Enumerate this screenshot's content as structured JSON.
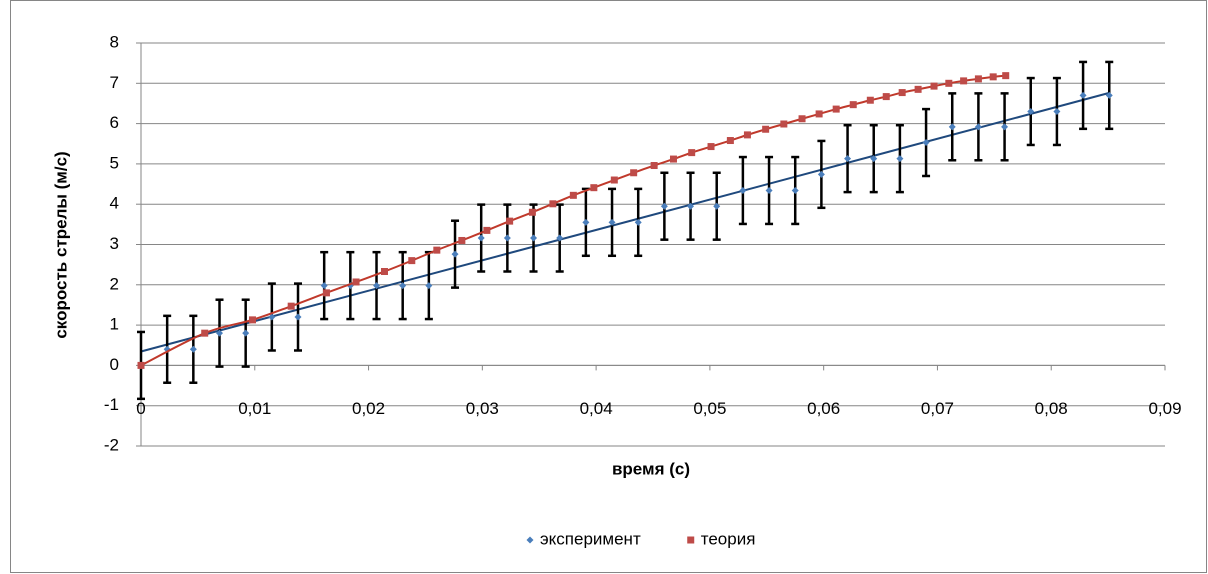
{
  "chart_data": {
    "type": "scatter",
    "x_label": "время (с)",
    "y_label": "скорость стрелы (м/с)",
    "xlim": [
      0,
      0.09
    ],
    "xticks": [
      0,
      {
        "value": 0.01,
        "label": "0,01"
      },
      {
        "value": 0.02,
        "label": "0,02"
      },
      {
        "value": 0.03,
        "label": "0,03"
      },
      {
        "value": 0.04,
        "label": "0,04"
      },
      {
        "value": 0.05,
        "label": "0,05"
      },
      {
        "value": 0.06,
        "label": "0,06"
      },
      {
        "value": 0.07,
        "label": "0,07"
      },
      {
        "value": 0.08,
        "label": "0,08"
      },
      {
        "value": 0.09,
        "label": "0,09"
      }
    ],
    "ylim": [
      -2,
      8
    ],
    "yticks": [
      -2,
      -1,
      0,
      1,
      2,
      3,
      4,
      5,
      6,
      7,
      8
    ],
    "grid": true,
    "legend": "bottom",
    "series": [
      {
        "name": "эксперимент",
        "color": "#4a7ebb",
        "marker": "diamond",
        "trendline": "linear",
        "line_color": "#1f497d",
        "error": 0.83,
        "x": [
          0,
          0.0023,
          0.0046,
          0.0069,
          0.0092,
          0.0115,
          0.0138,
          0.0161,
          0.0184,
          0.0207,
          0.023,
          0.0253,
          0.0276,
          0.0299,
          0.0322,
          0.0345,
          0.0368,
          0.0391,
          0.0414,
          0.0437,
          0.046,
          0.0483,
          0.0506,
          0.0529,
          0.0552,
          0.0575,
          0.0598,
          0.0621,
          0.0644,
          0.0667,
          0.069,
          0.0713,
          0.0736,
          0.0759,
          0.0782,
          0.0805,
          0.0828,
          0.0851
        ],
        "values": [
          0,
          0.4,
          0.4,
          0.8,
          0.8,
          1.2,
          1.2,
          1.98,
          1.98,
          1.98,
          1.98,
          1.98,
          2.76,
          3.16,
          3.16,
          3.16,
          3.16,
          3.55,
          3.55,
          3.55,
          3.95,
          3.95,
          3.95,
          4.34,
          4.34,
          4.34,
          4.74,
          5.13,
          5.13,
          5.13,
          5.53,
          5.92,
          5.92,
          5.92,
          6.3,
          6.3,
          6.7,
          6.7
        ]
      },
      {
        "name": "теория",
        "color": "#be4b48",
        "marker": "square",
        "trendline": "smooth",
        "line_color": "#c0392b",
        "x": [
          0,
          0.0056,
          0.0098,
          0.0132,
          0.0163,
          0.0189,
          0.0214,
          0.0238,
          0.026,
          0.0282,
          0.0304,
          0.0324,
          0.0344,
          0.0362,
          0.038,
          0.0398,
          0.0416,
          0.0433,
          0.0451,
          0.0468,
          0.0484,
          0.0501,
          0.0518,
          0.0533,
          0.0549,
          0.0565,
          0.0581,
          0.0596,
          0.0611,
          0.0626,
          0.0641,
          0.0655,
          0.0669,
          0.0683,
          0.0697,
          0.071,
          0.0723,
          0.0736,
          0.0749,
          0.076
        ],
        "values": [
          0,
          0.8,
          1.13,
          1.47,
          1.8,
          2.07,
          2.33,
          2.6,
          2.86,
          3.1,
          3.35,
          3.58,
          3.8,
          4.01,
          4.22,
          4.41,
          4.6,
          4.78,
          4.96,
          5.12,
          5.28,
          5.43,
          5.58,
          5.72,
          5.86,
          5.99,
          6.12,
          6.24,
          6.36,
          6.47,
          6.58,
          6.67,
          6.77,
          6.85,
          6.93,
          7.0,
          7.06,
          7.11,
          7.16,
          7.19
        ]
      }
    ]
  }
}
